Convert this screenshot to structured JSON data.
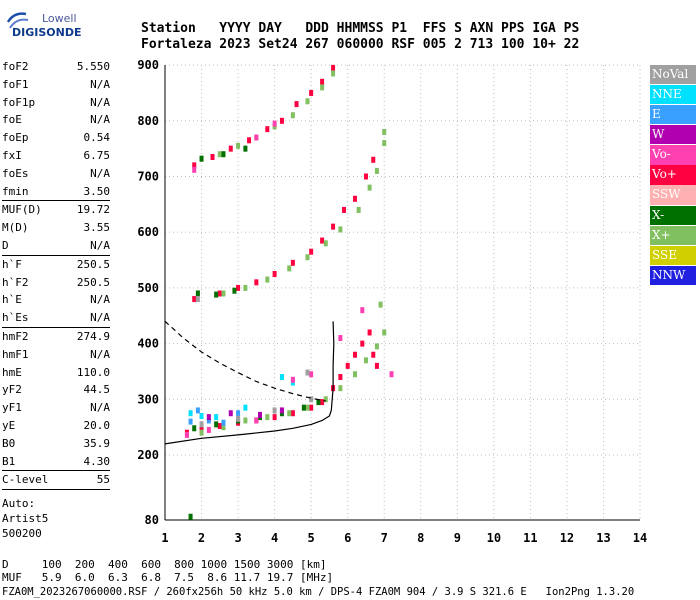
{
  "logo": {
    "line1": "Lowell",
    "line2": "DIGISONDE"
  },
  "header": {
    "line1": "Station   YYYY DAY   DDD HHMMSS P1  FFS S AXN PPS IGA PS",
    "line2": "Fortaleza 2023 Set24 267 060000 RSF 005 2 713 100 10+ 22"
  },
  "params_group1": [
    {
      "label": "foF2",
      "value": "5.550"
    },
    {
      "label": "foF1",
      "value": "N/A"
    },
    {
      "label": "foF1p",
      "value": "N/A"
    },
    {
      "label": "foE",
      "value": "N/A"
    },
    {
      "label": "foEp",
      "value": "0.54"
    },
    {
      "label": "fxI",
      "value": "6.75"
    },
    {
      "label": "foEs",
      "value": "N/A"
    },
    {
      "label": "fmin",
      "value": "3.50"
    }
  ],
  "params_group2": [
    {
      "label": "MUF(D)",
      "value": "19.72"
    },
    {
      "label": "M(D)",
      "value": "3.55"
    },
    {
      "label": "D",
      "value": "N/A"
    }
  ],
  "params_group3": [
    {
      "label": "h`F",
      "value": "250.5"
    },
    {
      "label": "h`F2",
      "value": "250.5"
    },
    {
      "label": "h`E",
      "value": "N/A"
    },
    {
      "label": "h`Es",
      "value": "N/A"
    }
  ],
  "params_group4": [
    {
      "label": "hmF2",
      "value": "274.9"
    },
    {
      "label": "hmF1",
      "value": "N/A"
    },
    {
      "label": "hmE",
      "value": "110.0"
    },
    {
      "label": "yF2",
      "value": "44.5"
    },
    {
      "label": "yF1",
      "value": "N/A"
    },
    {
      "label": "yE",
      "value": "20.0"
    },
    {
      "label": "B0",
      "value": "35.9"
    },
    {
      "label": "B1",
      "value": "4.30"
    }
  ],
  "params_group5": [
    {
      "label": "C-level",
      "value": "55"
    }
  ],
  "auto_lines": [
    "Auto:",
    "Artist5",
    "500200"
  ],
  "legend": [
    {
      "label": "NoVal",
      "color": "#a0a0a0"
    },
    {
      "label": "NNE",
      "color": "#00e0ff"
    },
    {
      "label": "E",
      "color": "#3aa0ff"
    },
    {
      "label": "W",
      "color": "#b000b0"
    },
    {
      "label": "Vo-",
      "color": "#ff40b0"
    },
    {
      "label": "Vo+",
      "color": "#ff0040"
    },
    {
      "label": "SSW",
      "color": "#ffb0b0"
    },
    {
      "label": "X-",
      "color": "#007000"
    },
    {
      "label": "X+",
      "color": "#80c060"
    },
    {
      "label": "SSE",
      "color": "#d0d000"
    },
    {
      "label": "NNW",
      "color": "#2020e0"
    }
  ],
  "bottom": {
    "line1": "D     100  200  400  600  800 1000 1500 3000 [km]",
    "line2": "MUF   5.9  6.0  6.3  6.8  7.5  8.6 11.7 19.7 [MHz]",
    "line3": "FZA0M_2023267060000.RSF / 260fx256h 50 kHz 5.0 km / DPS-4 FZA0M 904 / 3.9 S 321.6 E   Ion2Png 1.3.20"
  },
  "chart_data": {
    "type": "scatter",
    "title": "",
    "xlabel": "",
    "ylabel": "",
    "xlim": [
      1,
      14
    ],
    "ylim": [
      80,
      900
    ],
    "x_ticks": [
      1,
      2,
      3,
      4,
      5,
      6,
      7,
      8,
      9,
      10,
      11,
      12,
      13,
      14
    ],
    "y_ticks": [
      80,
      200,
      300,
      400,
      500,
      600,
      700,
      800,
      900
    ],
    "grid": true,
    "legend_position": "right",
    "series": [
      {
        "name": "Vo+",
        "color": "#ff0040",
        "points": [
          [
            1.6,
            240
          ],
          [
            2.0,
            245
          ],
          [
            2.5,
            252
          ],
          [
            3.0,
            258
          ],
          [
            3.5,
            262
          ],
          [
            4.0,
            268
          ],
          [
            4.5,
            275
          ],
          [
            5.0,
            285
          ],
          [
            5.3,
            295
          ],
          [
            5.6,
            320
          ],
          [
            5.8,
            340
          ],
          [
            6.0,
            360
          ],
          [
            6.2,
            380
          ],
          [
            6.4,
            400
          ],
          [
            6.6,
            420
          ],
          [
            6.7,
            380
          ],
          [
            6.8,
            360
          ],
          [
            1.8,
            480
          ],
          [
            2.5,
            490
          ],
          [
            3.0,
            500
          ],
          [
            3.5,
            510
          ],
          [
            4.0,
            525
          ],
          [
            4.5,
            545
          ],
          [
            5.0,
            565
          ],
          [
            5.3,
            585
          ],
          [
            5.6,
            610
          ],
          [
            5.9,
            640
          ],
          [
            6.2,
            660
          ],
          [
            6.5,
            700
          ],
          [
            6.7,
            730
          ],
          [
            1.8,
            720
          ],
          [
            2.3,
            735
          ],
          [
            2.8,
            750
          ],
          [
            3.3,
            765
          ],
          [
            3.8,
            785
          ],
          [
            4.2,
            800
          ],
          [
            4.6,
            830
          ],
          [
            5.0,
            850
          ],
          [
            5.3,
            870
          ],
          [
            5.6,
            895
          ]
        ]
      },
      {
        "name": "X+",
        "color": "#80c060",
        "points": [
          [
            2.0,
            240
          ],
          [
            2.6,
            250
          ],
          [
            3.2,
            262
          ],
          [
            3.8,
            268
          ],
          [
            4.4,
            275
          ],
          [
            4.9,
            285
          ],
          [
            5.4,
            300
          ],
          [
            5.8,
            320
          ],
          [
            6.2,
            345
          ],
          [
            6.5,
            370
          ],
          [
            6.8,
            395
          ],
          [
            7.0,
            420
          ],
          [
            6.9,
            470
          ],
          [
            2.6,
            490
          ],
          [
            3.2,
            500
          ],
          [
            3.8,
            515
          ],
          [
            4.4,
            535
          ],
          [
            4.9,
            555
          ],
          [
            5.4,
            580
          ],
          [
            5.8,
            605
          ],
          [
            6.3,
            640
          ],
          [
            6.6,
            680
          ],
          [
            6.8,
            710
          ],
          [
            7.0,
            760
          ],
          [
            7.0,
            780
          ],
          [
            2.5,
            740
          ],
          [
            3.0,
            755
          ],
          [
            3.5,
            770
          ],
          [
            4.0,
            790
          ],
          [
            4.5,
            810
          ],
          [
            4.9,
            835
          ],
          [
            5.3,
            860
          ],
          [
            5.6,
            885
          ]
        ]
      },
      {
        "name": "X-",
        "color": "#007000",
        "points": [
          [
            1.8,
            248
          ],
          [
            2.4,
            255
          ],
          [
            3.0,
            262
          ],
          [
            3.6,
            268
          ],
          [
            4.2,
            275
          ],
          [
            4.8,
            285
          ],
          [
            5.2,
            295
          ],
          [
            1.9,
            490
          ],
          [
            2.4,
            488
          ],
          [
            2.9,
            495
          ],
          [
            2.0,
            732
          ],
          [
            2.6,
            740
          ],
          [
            3.2,
            750
          ],
          [
            1.7,
            86
          ]
        ]
      },
      {
        "name": "NNE",
        "color": "#00e0ff",
        "points": [
          [
            1.7,
            275
          ],
          [
            2.0,
            270
          ],
          [
            2.4,
            268
          ],
          [
            3.2,
            285
          ],
          [
            4.2,
            340
          ],
          [
            4.5,
            330
          ]
        ]
      },
      {
        "name": "E",
        "color": "#3aa0ff",
        "points": [
          [
            1.7,
            260
          ],
          [
            1.9,
            280
          ],
          [
            2.2,
            262
          ],
          [
            2.6,
            258
          ],
          [
            3.0,
            275
          ]
        ]
      },
      {
        "name": "Vo-",
        "color": "#ff40b0",
        "points": [
          [
            1.6,
            236
          ],
          [
            2.2,
            245
          ],
          [
            3.5,
            262
          ],
          [
            4.5,
            335
          ],
          [
            5.0,
            345
          ],
          [
            5.8,
            410
          ],
          [
            6.4,
            460
          ],
          [
            7.2,
            345
          ],
          [
            1.8,
            712
          ],
          [
            3.5,
            770
          ],
          [
            4.0,
            795
          ]
        ]
      },
      {
        "name": "W",
        "color": "#b000b0",
        "points": [
          [
            2.2,
            268
          ],
          [
            2.8,
            275
          ],
          [
            3.6,
            272
          ],
          [
            4.2,
            280
          ]
        ]
      },
      {
        "name": "NoVal",
        "color": "#a0a0a0",
        "points": [
          [
            2.0,
            255
          ],
          [
            3.0,
            265
          ],
          [
            4.0,
            280
          ],
          [
            5.0,
            300
          ],
          [
            4.9,
            348
          ],
          [
            1.9,
            480
          ]
        ]
      }
    ],
    "traces": [
      {
        "name": "profile-solid",
        "style": "solid",
        "points": [
          [
            1.0,
            220
          ],
          [
            2.0,
            230
          ],
          [
            3.0,
            236
          ],
          [
            4.0,
            243
          ],
          [
            4.5,
            248
          ],
          [
            5.0,
            255
          ],
          [
            5.3,
            262
          ],
          [
            5.5,
            270
          ],
          [
            5.55,
            280
          ],
          [
            5.6,
            320
          ],
          [
            5.6,
            360
          ],
          [
            5.62,
            400
          ],
          [
            5.6,
            440
          ]
        ]
      },
      {
        "name": "profile-dashed",
        "style": "dashed",
        "points": [
          [
            1.0,
            440
          ],
          [
            1.5,
            410
          ],
          [
            2.0,
            385
          ],
          [
            2.5,
            365
          ],
          [
            3.0,
            348
          ],
          [
            3.5,
            332
          ],
          [
            4.0,
            320
          ],
          [
            4.5,
            310
          ],
          [
            5.0,
            302
          ],
          [
            5.4,
            297
          ]
        ]
      }
    ]
  }
}
